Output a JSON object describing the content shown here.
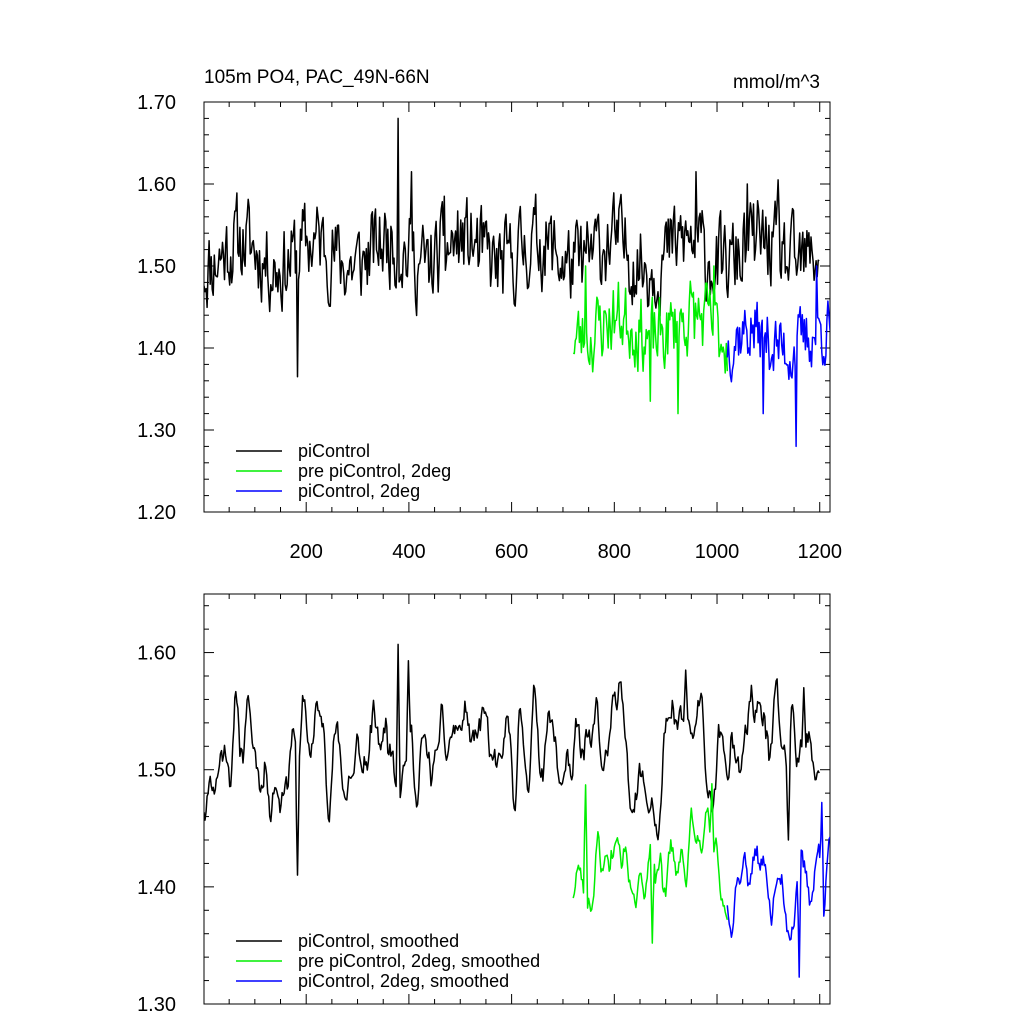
{
  "chart_data": [
    {
      "type": "line",
      "title": "105m PO4, PAC_49N-66N",
      "units": "mmol/m^3",
      "xlabel": "",
      "ylabel": "",
      "xlim": [
        1,
        1220
      ],
      "ylim": [
        1.2,
        1.7
      ],
      "xticks": [
        200,
        400,
        600,
        800,
        1000,
        1200
      ],
      "xtick_labels": [
        "200",
        "400",
        "600",
        "800",
        "1000",
        "1200"
      ],
      "yticks": [
        1.2,
        1.3,
        1.4,
        1.5,
        1.6,
        1.7
      ],
      "ytick_labels": [
        "1.20",
        "1.30",
        "1.40",
        "1.50",
        "1.60",
        "1.70"
      ],
      "legend_position": "bottom-left",
      "series": [
        {
          "name": "piControl",
          "color": "#000000",
          "x_start": 1,
          "x_end": 1200,
          "mean": 1.515,
          "amp": 0.045,
          "seed": 11,
          "features": [
            [
              183,
              1.365
            ],
            [
              380,
              1.68
            ],
            [
              405,
              1.615
            ],
            [
              470,
              1.585
            ],
            [
              960,
              1.615
            ],
            [
              1060,
              1.6
            ],
            [
              1120,
              1.605
            ]
          ]
        },
        {
          "name": "pre piControl, 2deg",
          "color": "#00ee00",
          "x_start": 720,
          "x_end": 1020,
          "mean": 1.425,
          "amp": 0.04,
          "seed": 23,
          "features": [
            [
              745,
              1.5
            ],
            [
              870,
              1.335
            ],
            [
              925,
              1.32
            ],
            [
              995,
              1.5
            ]
          ]
        },
        {
          "name": "piControl, 2deg",
          "color": "#0000ff",
          "x_start": 1020,
          "x_end": 1220,
          "mean": 1.41,
          "amp": 0.035,
          "seed": 37,
          "features": [
            [
              1090,
              1.32
            ],
            [
              1155,
              1.28
            ],
            [
              1195,
              1.5
            ]
          ]
        }
      ]
    },
    {
      "type": "line",
      "title": "",
      "xlim": [
        1,
        1220
      ],
      "ylim": [
        1.3,
        1.65
      ],
      "yticks": [
        1.3,
        1.4,
        1.5,
        1.6
      ],
      "ytick_labels": [
        "1.30",
        "1.40",
        "1.50",
        "1.60"
      ],
      "legend_position": "bottom-left",
      "series": [
        {
          "name": "piControl, smoothed",
          "color": "#000000",
          "x_start": 1,
          "x_end": 1200,
          "mean": 1.515,
          "amp": 0.03,
          "seed": 11,
          "features": [
            [
              183,
              1.41
            ],
            [
              380,
              1.607
            ],
            [
              400,
              1.593
            ],
            [
              940,
              1.585
            ],
            [
              1140,
              1.44
            ],
            [
              1170,
              1.57
            ]
          ]
        },
        {
          "name": "pre piControl, 2deg, smoothed",
          "color": "#00ee00",
          "x_start": 720,
          "x_end": 1020,
          "mean": 1.42,
          "amp": 0.025,
          "seed": 23,
          "features": [
            [
              745,
              1.487
            ],
            [
              875,
              1.352
            ],
            [
              990,
              1.488
            ]
          ]
        },
        {
          "name": "piControl, 2deg, smoothed",
          "color": "#0000ff",
          "x_start": 1020,
          "x_end": 1220,
          "mean": 1.405,
          "amp": 0.025,
          "seed": 37,
          "features": [
            [
              1160,
              1.323
            ],
            [
              1205,
              1.472
            ]
          ]
        }
      ]
    }
  ]
}
